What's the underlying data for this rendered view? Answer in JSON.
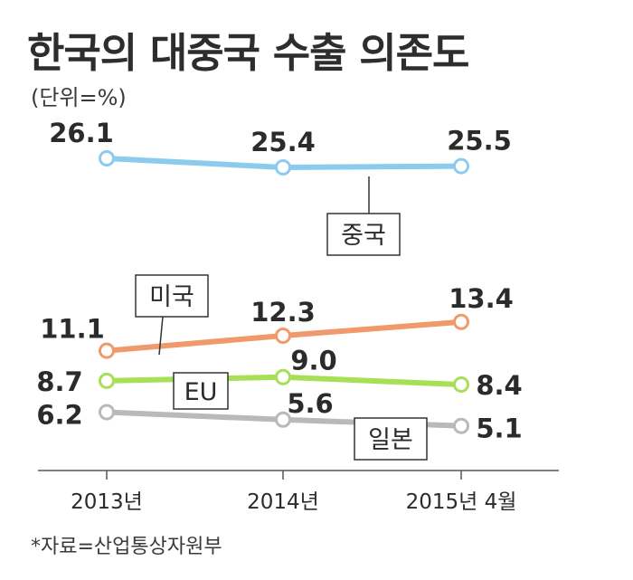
{
  "title": "한국의 대중국 수출 의존도",
  "unit": "(단위=%)",
  "source": "*자료=산업통상자원부",
  "chart_data": {
    "type": "line",
    "categories": [
      "2013년",
      "2014년",
      "2015년 4월"
    ],
    "series": [
      {
        "name": "중국",
        "values": [
          26.1,
          25.4,
          25.5
        ],
        "labels": [
          "26.1",
          "25.4",
          "25.5"
        ],
        "color": "#8ccbee"
      },
      {
        "name": "미국",
        "values": [
          11.1,
          12.3,
          13.4
        ],
        "labels": [
          "11.1",
          "12.3",
          "13.4"
        ],
        "color": "#f0996a"
      },
      {
        "name": "EU",
        "values": [
          8.7,
          9.0,
          8.4
        ],
        "labels": [
          "8.7",
          "9.0",
          "8.4"
        ],
        "color": "#a7df57"
      },
      {
        "name": "일본",
        "values": [
          6.2,
          5.6,
          5.1
        ],
        "labels": [
          "6.2",
          "5.6",
          "5.1"
        ],
        "color": "#b9b9b9"
      }
    ],
    "grid": false,
    "legend": "inline boxed labels"
  }
}
